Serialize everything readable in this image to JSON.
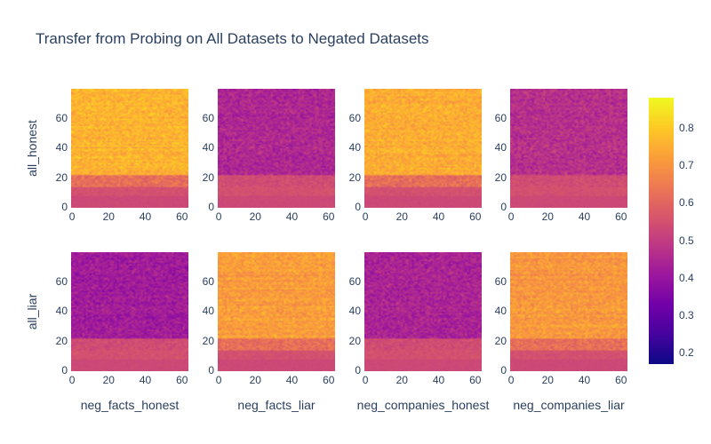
{
  "title": "Transfer from Probing on All Datasets to Negated Datasets",
  "chart_data": {
    "type": "heatmap",
    "title": "Transfer from Probing on All Datasets to Negated Datasets",
    "rows": [
      "all_honest",
      "all_liar"
    ],
    "columns": [
      "neg_facts_honest",
      "neg_facts_liar",
      "neg_companies_honest",
      "neg_companies_liar"
    ],
    "x_range": [
      0,
      63
    ],
    "y_range": [
      0,
      79
    ],
    "x_ticks": [
      "0",
      "20",
      "40",
      "60"
    ],
    "y_ticks": [
      "0",
      "20",
      "40",
      "60"
    ],
    "colorscale": "plasma",
    "colorbar": {
      "range": [
        0.17,
        0.88
      ],
      "ticks": [
        "0.2",
        "0.3",
        "0.4",
        "0.5",
        "0.6",
        "0.7",
        "0.8"
      ]
    },
    "panels": [
      {
        "row": "all_honest",
        "col": "neg_facts_honest",
        "low_band_value": 0.55,
        "upper_value": 0.76,
        "pattern": "high"
      },
      {
        "row": "all_honest",
        "col": "neg_facts_liar",
        "low_band_value": 0.55,
        "upper_value": 0.45,
        "pattern": "low"
      },
      {
        "row": "all_honest",
        "col": "neg_companies_honest",
        "low_band_value": 0.55,
        "upper_value": 0.75,
        "pattern": "high"
      },
      {
        "row": "all_honest",
        "col": "neg_companies_liar",
        "low_band_value": 0.55,
        "upper_value": 0.47,
        "pattern": "low"
      },
      {
        "row": "all_liar",
        "col": "neg_facts_honest",
        "low_band_value": 0.55,
        "upper_value": 0.42,
        "pattern": "low"
      },
      {
        "row": "all_liar",
        "col": "neg_facts_liar",
        "low_band_value": 0.55,
        "upper_value": 0.72,
        "pattern": "high"
      },
      {
        "row": "all_liar",
        "col": "neg_companies_honest",
        "low_band_value": 0.55,
        "upper_value": 0.44,
        "pattern": "low"
      },
      {
        "row": "all_liar",
        "col": "neg_companies_liar",
        "low_band_value": 0.55,
        "upper_value": 0.71,
        "pattern": "high"
      }
    ]
  }
}
